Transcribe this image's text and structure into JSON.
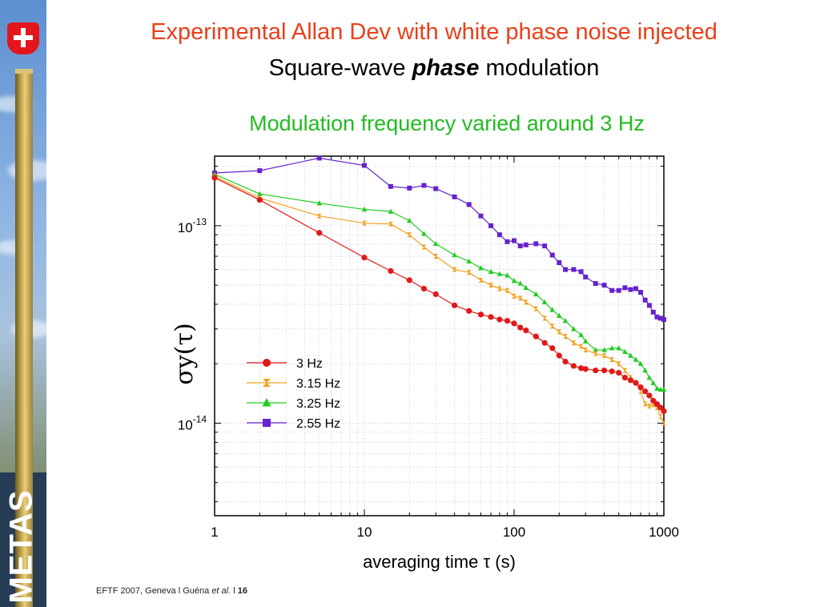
{
  "slide": {
    "title_line1": "Experimental Allan Dev with white phase noise injected",
    "title_line2_pre": "Square-wave ",
    "title_line2_emph": "phase",
    "title_line2_post": " modulation",
    "subtitle": "Modulation frequency varied around 3 Hz",
    "footer_text": "EFTF 2007, Geneva l  Guéna ",
    "footer_italic": "et al.",
    "footer_sep": "  l  ",
    "page_number": "16",
    "brand": "METAS",
    "colors": {
      "title": "#e8401c",
      "subtitle": "#22bb22",
      "logo_red": "#e3161d"
    },
    "icons": [
      "swiss-shield-icon"
    ]
  },
  "chart_data": {
    "type": "line",
    "log_x": true,
    "log_y": true,
    "xlim": [
      1,
      1000
    ],
    "ylim": [
      3.4e-15,
      2.25e-13
    ],
    "grid": true,
    "xlabel": "averaging time τ (s)",
    "ylabel": "σy(τ)",
    "x_ticks": [
      {
        "value": 1,
        "label": "1"
      },
      {
        "value": 10,
        "label": "10"
      },
      {
        "value": 100,
        "label": "100"
      },
      {
        "value": 1000,
        "label": "1000"
      }
    ],
    "y_ticks": [
      {
        "value": 1e-13,
        "base": "10",
        "exp": "-13"
      },
      {
        "value": 1e-14,
        "base": "10",
        "exp": "-14"
      }
    ],
    "legend_position": "center-left",
    "series": [
      {
        "name": "3 Hz",
        "color": "#e01818",
        "marker": "circle",
        "x": [
          1,
          2,
          5,
          10,
          15,
          20,
          25,
          30,
          40,
          50,
          60,
          70,
          80,
          90,
          100,
          110,
          120,
          140,
          160,
          180,
          200,
          220,
          250,
          280,
          300,
          350,
          400,
          450,
          500,
          550,
          600,
          650,
          700,
          750,
          800,
          850,
          900,
          950,
          1000
        ],
        "y": [
          1.75e-13,
          1.35e-13,
          9.2e-14,
          6.9e-14,
          5.9e-14,
          5.3e-14,
          4.8e-14,
          4.5e-14,
          3.95e-14,
          3.7e-14,
          3.55e-14,
          3.45e-14,
          3.35e-14,
          3.3e-14,
          3.2e-14,
          3.05e-14,
          2.95e-14,
          2.75e-14,
          2.55e-14,
          2.4e-14,
          2.2e-14,
          2.05e-14,
          1.95e-14,
          1.9e-14,
          1.88e-14,
          1.85e-14,
          1.85e-14,
          1.83e-14,
          1.8e-14,
          1.7e-14,
          1.65e-14,
          1.6e-14,
          1.52e-14,
          1.45e-14,
          1.38e-14,
          1.3e-14,
          1.25e-14,
          1.2e-14,
          1.15e-14
        ]
      },
      {
        "name": "3.15 Hz",
        "color": "#f0a020",
        "marker": "bowtie",
        "x": [
          1,
          2,
          5,
          10,
          15,
          20,
          25,
          30,
          40,
          50,
          60,
          70,
          80,
          90,
          100,
          110,
          120,
          140,
          160,
          180,
          200,
          220,
          250,
          280,
          300,
          350,
          400,
          450,
          500,
          550,
          600,
          650,
          700,
          750,
          800,
          850,
          900,
          950,
          1000
        ],
        "y": [
          1.78e-13,
          1.38e-13,
          1.12e-13,
          1.03e-13,
          1.02e-13,
          9e-14,
          7.8e-14,
          7e-14,
          6e-14,
          5.8e-14,
          5.3e-14,
          5e-14,
          4.8e-14,
          4.7e-14,
          4.4e-14,
          4.3e-14,
          4.1e-14,
          3.8e-14,
          3.4e-14,
          3.1e-14,
          2.9e-14,
          2.75e-14,
          2.55e-14,
          2.45e-14,
          2.35e-14,
          2.25e-14,
          2.2e-14,
          2.1e-14,
          2e-14,
          1.85e-14,
          1.7e-14,
          1.6e-14,
          1.45e-14,
          1.25e-14,
          1.22e-14,
          1.24e-14,
          1.2e-14,
          1.08e-14,
          1e-14
        ]
      },
      {
        "name": "3.25 Hz",
        "color": "#22cc22",
        "marker": "triangle",
        "x": [
          1,
          2,
          5,
          10,
          15,
          20,
          25,
          30,
          40,
          50,
          60,
          70,
          80,
          90,
          100,
          110,
          120,
          140,
          160,
          180,
          200,
          220,
          250,
          280,
          300,
          350,
          400,
          450,
          500,
          550,
          600,
          650,
          700,
          750,
          800,
          850,
          900,
          950,
          1000
        ],
        "y": [
          1.82e-13,
          1.45e-13,
          1.3e-13,
          1.21e-13,
          1.18e-13,
          1.06e-13,
          9.1e-14,
          8.1e-14,
          7.1e-14,
          6.6e-14,
          6.1e-14,
          5.85e-14,
          5.7e-14,
          5.6e-14,
          5.25e-14,
          5.1e-14,
          4.85e-14,
          4.5e-14,
          4.1e-14,
          3.75e-14,
          3.5e-14,
          3.3e-14,
          3e-14,
          2.8e-14,
          2.6e-14,
          2.35e-14,
          2.35e-14,
          2.4e-14,
          2.4e-14,
          2.3e-14,
          2.2e-14,
          2.1e-14,
          2e-14,
          1.85e-14,
          1.7e-14,
          1.6e-14,
          1.5e-14,
          1.48e-14,
          1.48e-14
        ]
      },
      {
        "name": "2.55 Hz",
        "color": "#6622cc",
        "marker": "square",
        "x": [
          1,
          2,
          5,
          10,
          15,
          20,
          25,
          30,
          40,
          50,
          60,
          70,
          80,
          90,
          100,
          110,
          120,
          140,
          160,
          180,
          200,
          220,
          250,
          280,
          300,
          350,
          400,
          450,
          500,
          550,
          600,
          650,
          700,
          750,
          800,
          850,
          900,
          950,
          1000
        ],
        "y": [
          1.85e-13,
          1.9e-13,
          2.2e-13,
          2.02e-13,
          1.58e-13,
          1.55e-13,
          1.6e-13,
          1.54e-13,
          1.4e-13,
          1.28e-13,
          1.12e-13,
          1e-13,
          9e-14,
          8.3e-14,
          8.4e-14,
          7.9e-14,
          8e-14,
          8.1e-14,
          7.9e-14,
          7.1e-14,
          6.5e-14,
          6e-14,
          6e-14,
          5.85e-14,
          5.5e-14,
          5.1e-14,
          5e-14,
          4.7e-14,
          4.7e-14,
          4.85e-14,
          4.75e-14,
          4.8e-14,
          4.6e-14,
          4.2e-14,
          3.95e-14,
          3.65e-14,
          3.45e-14,
          3.4e-14,
          3.35e-14
        ]
      }
    ]
  }
}
